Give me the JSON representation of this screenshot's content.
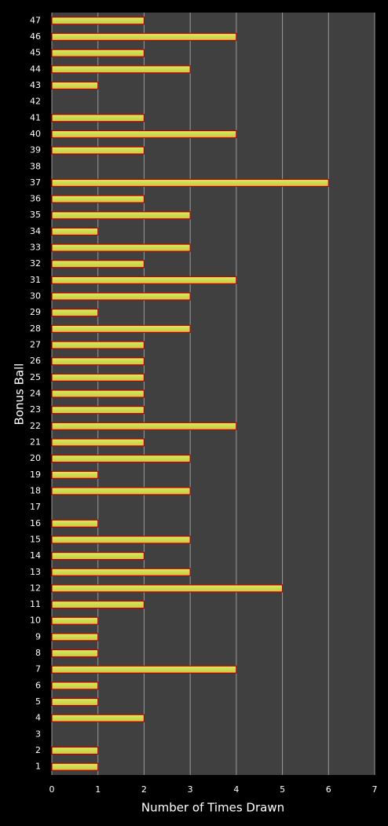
{
  "chart_data": {
    "type": "hbar",
    "y_label": "Bonus Ball",
    "x_label": "Number of Times Drawn",
    "categories": [
      "1",
      "2",
      "3",
      "4",
      "5",
      "6",
      "7",
      "8",
      "9",
      "10",
      "11",
      "12",
      "13",
      "14",
      "15",
      "16",
      "17",
      "18",
      "19",
      "20",
      "21",
      "22",
      "23",
      "24",
      "25",
      "26",
      "27",
      "28",
      "29",
      "30",
      "31",
      "32",
      "33",
      "34",
      "35",
      "36",
      "37",
      "38",
      "39",
      "40",
      "41",
      "42",
      "43",
      "44",
      "45",
      "46",
      "47"
    ],
    "values": [
      1,
      1,
      0,
      2,
      1,
      1,
      4,
      1,
      1,
      1,
      2,
      5,
      3,
      2,
      3,
      1,
      0,
      3,
      1,
      3,
      2,
      4,
      2,
      2,
      2,
      2,
      2,
      3,
      1,
      3,
      4,
      2,
      3,
      1,
      3,
      2,
      6,
      0,
      2,
      4,
      2,
      0,
      1,
      3,
      2,
      4,
      2
    ],
    "color": "#c8dc50",
    "edge_color": "#c00000",
    "xlim": [
      0,
      7
    ],
    "xticks": [
      0,
      1,
      2,
      3,
      4,
      5,
      6,
      7
    ],
    "grid": true
  }
}
